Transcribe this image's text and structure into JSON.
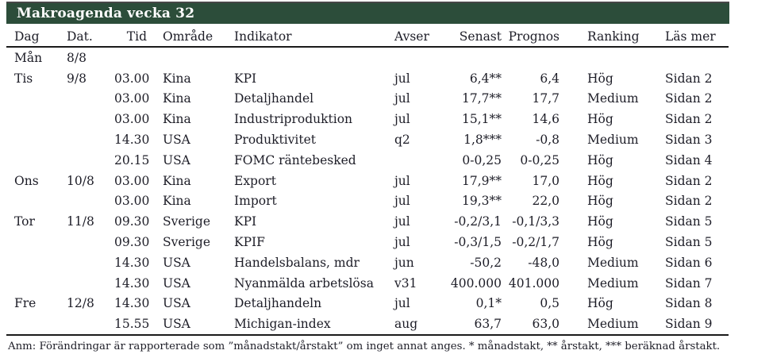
{
  "title": "Makroagenda vecka 32",
  "table": {
    "columns": [
      "Dag",
      "Dat.",
      "Tid",
      "Område",
      "Indikator",
      "Avser",
      "Senast",
      "Prognos",
      "Ranking",
      "Läs mer"
    ],
    "rows": [
      {
        "dag": "Mån",
        "dat": "8/8",
        "tid": "",
        "omrade": "",
        "indikator": "",
        "avser": "",
        "senast": "",
        "prognos": "",
        "ranking": "",
        "lasmer": ""
      },
      {
        "dag": "Tis",
        "dat": "9/8",
        "tid": "03.00",
        "omrade": "Kina",
        "indikator": "KPI",
        "avser": "jul",
        "senast": "6,4**",
        "prognos": "6,4",
        "ranking": "Hög",
        "lasmer": "Sidan 2"
      },
      {
        "dag": "",
        "dat": "",
        "tid": "03.00",
        "omrade": "Kina",
        "indikator": "Detaljhandel",
        "avser": "jul",
        "senast": "17,7**",
        "prognos": "17,7",
        "ranking": "Medium",
        "lasmer": "Sidan 2"
      },
      {
        "dag": "",
        "dat": "",
        "tid": "03.00",
        "omrade": "Kina",
        "indikator": "Industriproduktion",
        "avser": "jul",
        "senast": "15,1**",
        "prognos": "14,6",
        "ranking": "Hög",
        "lasmer": "Sidan 2"
      },
      {
        "dag": "",
        "dat": "",
        "tid": "14.30",
        "omrade": "USA",
        "indikator": "Produktivitet",
        "avser": "q2",
        "senast": "1,8***",
        "prognos": "-0,8",
        "ranking": "Medium",
        "lasmer": "Sidan 3"
      },
      {
        "dag": "",
        "dat": "",
        "tid": "20.15",
        "omrade": "USA",
        "indikator": "FOMC räntebesked",
        "avser": "",
        "senast": "0-0,25",
        "prognos": "0-0,25",
        "ranking": "Hög",
        "lasmer": "Sidan 4"
      },
      {
        "dag": "Ons",
        "dat": "10/8",
        "tid": "03.00",
        "omrade": "Kina",
        "indikator": "Export",
        "avser": "jul",
        "senast": "17,9**",
        "prognos": "17,0",
        "ranking": "Hög",
        "lasmer": "Sidan 2"
      },
      {
        "dag": "",
        "dat": "",
        "tid": "03.00",
        "omrade": "Kina",
        "indikator": "Import",
        "avser": "jul",
        "senast": "19,3**",
        "prognos": "22,0",
        "ranking": "Hög",
        "lasmer": "Sidan 2"
      },
      {
        "dag": "Tor",
        "dat": "11/8",
        "tid": "09.30",
        "omrade": "Sverige",
        "indikator": "KPI",
        "avser": "jul",
        "senast": "-0,2/3,1",
        "prognos": "-0,1/3,3",
        "ranking": "Hög",
        "lasmer": "Sidan 5"
      },
      {
        "dag": "",
        "dat": "",
        "tid": "09.30",
        "omrade": "Sverige",
        "indikator": "KPIF",
        "avser": "jul",
        "senast": "-0,3/1,5",
        "prognos": "-0,2/1,7",
        "ranking": "Hög",
        "lasmer": "Sidan 5"
      },
      {
        "dag": "",
        "dat": "",
        "tid": "14.30",
        "omrade": "USA",
        "indikator": "Handelsbalans, mdr",
        "avser": "jun",
        "senast": "-50,2",
        "prognos": "-48,0",
        "ranking": "Medium",
        "lasmer": "Sidan 6"
      },
      {
        "dag": "",
        "dat": "",
        "tid": "14.30",
        "omrade": "USA",
        "indikator": "Nyanmälda arbetslösa",
        "avser": "v31",
        "senast": "400.000",
        "prognos": "401.000",
        "ranking": "Medium",
        "lasmer": "Sidan 7"
      },
      {
        "dag": "Fre",
        "dat": "12/8",
        "tid": "14.30",
        "omrade": "USA",
        "indikator": "Detaljhandeln",
        "avser": "jul",
        "senast": "0,1*",
        "prognos": "0,5",
        "ranking": "Hög",
        "lasmer": "Sidan 8"
      },
      {
        "dag": "",
        "dat": "",
        "tid": "15.55",
        "omrade": "USA",
        "indikator": "Michigan-index",
        "avser": "aug",
        "senast": "63,7",
        "prognos": "63,0",
        "ranking": "Medium",
        "lasmer": "Sidan 9"
      }
    ]
  },
  "footnote": "Anm: Förändringar är rapporterade som ”månadstakt/årstakt” om inget annat anges. * månadstakt, ** årstakt, *** beräknad årstakt.",
  "colors": {
    "title_bar_bg": "#2c4d3a",
    "title_text": "#ffffff",
    "rule": "#1a1a1a",
    "body_text": "#1d1d27"
  }
}
